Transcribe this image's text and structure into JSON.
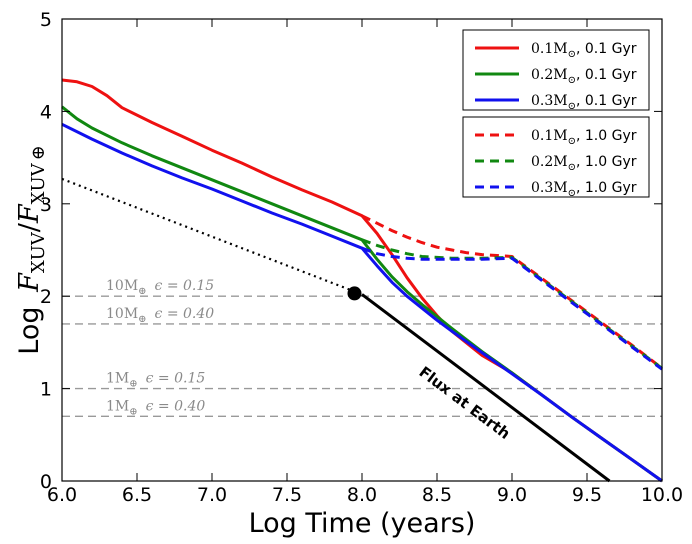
{
  "chart_data": {
    "type": "line",
    "xlabel": "Log Time (years)",
    "ylabel_prefix": "Log",
    "ylabel_num": "F",
    "ylabel_num_sub": "XUV",
    "ylabel_den": "F",
    "ylabel_den_sub": "XUV",
    "ylabel_den_symbol": "⊕",
    "xlim": [
      6.0,
      10.0
    ],
    "ylim": [
      0,
      5
    ],
    "x_ticks": [
      6.0,
      6.5,
      7.0,
      7.5,
      8.0,
      8.5,
      9.0,
      9.5,
      10.0
    ],
    "x_tick_labels": [
      "6.0",
      "6.5",
      "7.0",
      "7.5",
      "8.0",
      "8.5",
      "9.0",
      "9.5",
      "10.0"
    ],
    "y_ticks": [
      0,
      1,
      2,
      3,
      4,
      5
    ],
    "y_tick_labels": [
      "0",
      "1",
      "2",
      "3",
      "4",
      "5"
    ],
    "colors": {
      "red": "#ee1111",
      "green": "#118811",
      "blue": "#1111ee",
      "gray": "#999999",
      "black": "#000000"
    },
    "series": [
      {
        "name": "0.1M☉, 0.1 Gyr",
        "mass": "0.1M",
        "age": ", 0.1 Gyr",
        "color": "#ee1111",
        "style": "solid",
        "x": [
          6.0,
          6.1,
          6.2,
          6.3,
          6.4,
          6.6,
          6.8,
          7.0,
          7.2,
          7.4,
          7.6,
          7.8,
          8.0,
          8.1,
          8.2,
          8.3,
          8.4,
          8.5,
          8.6,
          8.8,
          9.0,
          9.2,
          9.4,
          9.6,
          9.8,
          10.0
        ],
        "y": [
          4.34,
          4.32,
          4.27,
          4.17,
          4.04,
          3.88,
          3.73,
          3.58,
          3.44,
          3.29,
          3.15,
          3.02,
          2.87,
          2.68,
          2.45,
          2.2,
          1.98,
          1.79,
          1.62,
          1.36,
          1.17,
          0.93,
          0.69,
          0.46,
          0.23,
          0.0
        ]
      },
      {
        "name": "0.2M☉, 0.1 Gyr",
        "mass": "0.2M",
        "age": ", 0.1 Gyr",
        "color": "#118811",
        "style": "solid",
        "x": [
          6.0,
          6.1,
          6.2,
          6.4,
          6.6,
          6.8,
          7.0,
          7.2,
          7.4,
          7.6,
          7.8,
          8.0,
          8.1,
          8.2,
          8.3,
          8.4,
          8.5,
          8.6,
          8.8,
          9.0,
          9.2,
          9.4,
          9.6,
          9.8,
          10.0
        ],
        "y": [
          4.05,
          3.92,
          3.82,
          3.66,
          3.52,
          3.39,
          3.26,
          3.13,
          3.0,
          2.87,
          2.74,
          2.61,
          2.4,
          2.21,
          2.05,
          1.91,
          1.78,
          1.65,
          1.4,
          1.17,
          0.93,
          0.69,
          0.46,
          0.23,
          0.0
        ]
      },
      {
        "name": "0.3M☉, 0.1 Gyr",
        "mass": "0.3M",
        "age": ", 0.1 Gyr",
        "color": "#1111ee",
        "style": "solid",
        "x": [
          6.0,
          6.2,
          6.4,
          6.6,
          6.8,
          7.0,
          7.2,
          7.4,
          7.6,
          7.8,
          8.0,
          8.1,
          8.2,
          8.3,
          8.4,
          8.5,
          8.6,
          8.8,
          9.0,
          9.2,
          9.4,
          9.6,
          9.8,
          10.0
        ],
        "y": [
          3.86,
          3.7,
          3.55,
          3.41,
          3.28,
          3.16,
          3.03,
          2.9,
          2.78,
          2.65,
          2.52,
          2.33,
          2.15,
          2.0,
          1.87,
          1.74,
          1.62,
          1.39,
          1.16,
          0.93,
          0.69,
          0.46,
          0.23,
          0.0
        ]
      },
      {
        "name": "0.1M☉, 1.0 Gyr",
        "mass": "0.1M",
        "age": ", 1.0 Gyr",
        "color": "#ee1111",
        "style": "dashed",
        "x": [
          8.0,
          8.1,
          8.2,
          8.3,
          8.4,
          8.5,
          8.6,
          8.7,
          8.8,
          8.9,
          9.0,
          9.2,
          9.4,
          9.6,
          9.8,
          10.0
        ],
        "y": [
          2.87,
          2.79,
          2.71,
          2.64,
          2.58,
          2.53,
          2.5,
          2.47,
          2.45,
          2.44,
          2.43,
          2.19,
          1.95,
          1.71,
          1.47,
          1.22
        ]
      },
      {
        "name": "0.2M☉, 1.0 Gyr",
        "mass": "0.2M",
        "age": ", 1.0 Gyr",
        "color": "#118811",
        "style": "dashed",
        "x": [
          8.0,
          8.1,
          8.2,
          8.3,
          8.4,
          8.5,
          8.6,
          8.8,
          9.0,
          9.2,
          9.4,
          9.6,
          9.8,
          10.0
        ],
        "y": [
          2.61,
          2.55,
          2.5,
          2.46,
          2.43,
          2.42,
          2.41,
          2.41,
          2.42,
          2.18,
          1.94,
          1.7,
          1.46,
          1.22
        ]
      },
      {
        "name": "0.3M☉, 1.0 Gyr",
        "mass": "0.3M",
        "age": ", 1.0 Gyr",
        "color": "#1111ee",
        "style": "dashed",
        "x": [
          8.0,
          8.1,
          8.2,
          8.3,
          8.4,
          8.5,
          8.6,
          8.8,
          9.0,
          9.2,
          9.4,
          9.6,
          9.8,
          10.0
        ],
        "y": [
          2.52,
          2.46,
          2.43,
          2.41,
          2.4,
          2.4,
          2.4,
          2.4,
          2.41,
          2.17,
          1.93,
          1.69,
          1.45,
          1.21
        ]
      }
    ],
    "earth_flux": {
      "label": "Flux at Earth",
      "dotted": {
        "x": [
          6.0,
          8.0
        ],
        "y": [
          3.27,
          2.02
        ]
      },
      "solid": {
        "x": [
          8.0,
          9.65
        ],
        "y": [
          2.02,
          0.0
        ]
      },
      "marker": {
        "x": 7.95,
        "y": 2.03
      }
    },
    "hlines": [
      {
        "y": 2.0,
        "mass": "10M",
        "eps": "ϵ = 0.15"
      },
      {
        "y": 1.7,
        "mass": "10M",
        "eps": "ϵ = 0.40"
      },
      {
        "y": 1.0,
        "mass": "1M",
        "eps": "ϵ = 0.15"
      },
      {
        "y": 0.7,
        "mass": "1M",
        "eps": "ϵ = 0.40"
      }
    ],
    "hline_symbol": "⊕",
    "legend_symbol": "⊙",
    "legend_placement": "top-right"
  }
}
